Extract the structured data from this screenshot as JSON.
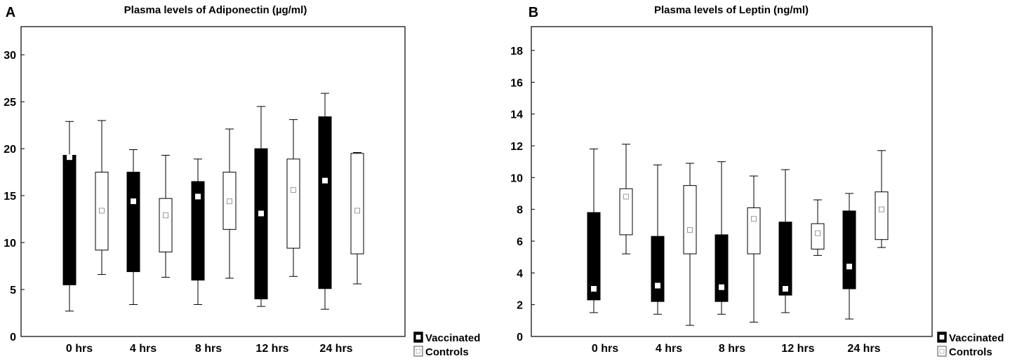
{
  "chart_data": [
    {
      "type": "box",
      "panel_label": "A",
      "title": "Plasma levels of Adiponectin (µg/ml)",
      "xlabel": "",
      "ylabel": "",
      "ylim": [
        0,
        33
      ],
      "yticks": [
        0,
        5,
        10,
        15,
        20,
        25,
        30
      ],
      "categories": [
        "0 hrs",
        "4 hrs",
        "8 hrs",
        "12 hrs",
        "24 hrs"
      ],
      "legend": {
        "position": "bottom-right",
        "entries": [
          "Vaccinated",
          "Controls"
        ]
      },
      "series": [
        {
          "name": "Vaccinated",
          "color": "#000000",
          "boxes": [
            {
              "whisker_low": 2.7,
              "q1": 5.5,
              "median": 19.1,
              "q3": 19.3,
              "whisker_high": 22.9
            },
            {
              "whisker_low": 3.4,
              "q1": 6.9,
              "median": 14.4,
              "q3": 17.5,
              "whisker_high": 19.9
            },
            {
              "whisker_low": 3.4,
              "q1": 6.0,
              "median": 14.9,
              "q3": 16.5,
              "whisker_high": 18.9
            },
            {
              "whisker_low": 3.2,
              "q1": 4.0,
              "median": 13.1,
              "q3": 20.0,
              "whisker_high": 24.5
            },
            {
              "whisker_low": 2.9,
              "q1": 5.1,
              "median": 16.6,
              "q3": 23.4,
              "whisker_high": 25.9
            }
          ]
        },
        {
          "name": "Controls",
          "color": "#ffffff",
          "boxes": [
            {
              "whisker_low": 6.6,
              "q1": 9.2,
              "median": 13.4,
              "q3": 17.5,
              "whisker_high": 23.0
            },
            {
              "whisker_low": 6.3,
              "q1": 9.0,
              "median": 12.9,
              "q3": 14.7,
              "whisker_high": 19.3
            },
            {
              "whisker_low": 6.2,
              "q1": 11.4,
              "median": 14.4,
              "q3": 17.5,
              "whisker_high": 22.1
            },
            {
              "whisker_low": 6.4,
              "q1": 9.4,
              "median": 15.6,
              "q3": 18.9,
              "whisker_high": 23.1
            },
            {
              "whisker_low": 5.6,
              "q1": 8.8,
              "median": 13.4,
              "q3": 19.5,
              "whisker_high": 19.6
            }
          ]
        }
      ]
    },
    {
      "type": "box",
      "panel_label": "B",
      "title": "Plasma levels of Leptin (ng/ml)",
      "xlabel": "",
      "ylabel": "",
      "ylim": [
        0,
        19.5
      ],
      "yticks": [
        0,
        2,
        4,
        6,
        8,
        10,
        12,
        14,
        16,
        18
      ],
      "categories": [
        "0 hrs",
        "4 hrs",
        "8 hrs",
        "12 hrs",
        "24 hrs"
      ],
      "legend": {
        "position": "bottom-right",
        "entries": [
          "Vaccinated",
          "Controls"
        ]
      },
      "series": [
        {
          "name": "Vaccinated",
          "color": "#000000",
          "boxes": [
            {
              "whisker_low": 1.5,
              "q1": 2.3,
              "median": 3.0,
              "q3": 7.8,
              "whisker_high": 11.8
            },
            {
              "whisker_low": 1.4,
              "q1": 2.2,
              "median": 3.2,
              "q3": 6.3,
              "whisker_high": 10.8
            },
            {
              "whisker_low": 1.4,
              "q1": 2.2,
              "median": 3.1,
              "q3": 6.4,
              "whisker_high": 11.0
            },
            {
              "whisker_low": 1.5,
              "q1": 2.6,
              "median": 3.0,
              "q3": 7.2,
              "whisker_high": 10.5
            },
            {
              "whisker_low": 1.1,
              "q1": 3.0,
              "median": 4.4,
              "q3": 7.9,
              "whisker_high": 9.0
            }
          ]
        },
        {
          "name": "Controls",
          "color": "#ffffff",
          "boxes": [
            {
              "whisker_low": 5.2,
              "q1": 6.4,
              "median": 8.8,
              "q3": 9.3,
              "whisker_high": 12.1
            },
            {
              "whisker_low": 0.7,
              "q1": 5.2,
              "median": 6.7,
              "q3": 9.5,
              "whisker_high": 10.9
            },
            {
              "whisker_low": 0.9,
              "q1": 5.2,
              "median": 7.4,
              "q3": 8.1,
              "whisker_high": 10.1
            },
            {
              "whisker_low": 5.1,
              "q1": 5.5,
              "median": 6.5,
              "q3": 7.1,
              "whisker_high": 8.6
            },
            {
              "whisker_low": 5.6,
              "q1": 6.1,
              "median": 8.0,
              "q3": 9.1,
              "whisker_high": 11.7
            }
          ]
        }
      ]
    }
  ]
}
